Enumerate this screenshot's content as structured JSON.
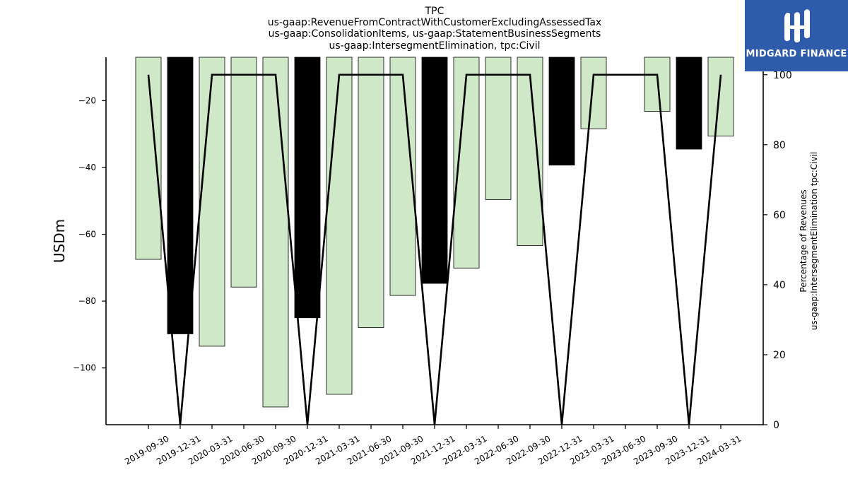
{
  "header": {
    "title_lines": [
      "TPC",
      "us-gaap:RevenueFromContractWithCustomerExcludingAssessedTax",
      "us-gaap:ConsolidationItems, us-gaap:StatementBusinessSegments",
      "us-gaap:IntersegmentElimination, tpc:Civil"
    ]
  },
  "logo": {
    "text": "MIDGARD FINANCE",
    "bg_color": "#2f5bab"
  },
  "chart_data": {
    "type": "bar",
    "categories": [
      "2019-09-30",
      "2019-12-31",
      "2020-03-31",
      "2020-06-30",
      "2020-09-30",
      "2020-12-31",
      "2021-03-31",
      "2021-06-30",
      "2021-09-30",
      "2021-12-31",
      "2022-03-31",
      "2022-06-30",
      "2022-09-30",
      "2022-12-31",
      "2023-03-31",
      "2023-06-30",
      "2023-09-30",
      "2023-12-31",
      "2024-03-31"
    ],
    "series": [
      {
        "kind": "bar",
        "axis": "left",
        "values": [
          -67.5,
          -89.8,
          -93.5,
          -75.8,
          -111.7,
          -85.0,
          -107.9,
          -87.9,
          -78.3,
          -74.7,
          -70.1,
          -49.6,
          -63.4,
          -39.3,
          -28.4,
          null,
          -23.2,
          -34.5,
          -30.6
        ],
        "colors": [
          "#cfe9c8",
          "#000000",
          "#cfe9c8",
          "#cfe9c8",
          "#cfe9c8",
          "#000000",
          "#cfe9c8",
          "#cfe9c8",
          "#cfe9c8",
          "#000000",
          "#cfe9c8",
          "#cfe9c8",
          "#cfe9c8",
          "#000000",
          "#cfe9c8",
          "#cfe9c8",
          "#cfe9c8",
          "#000000",
          "#cfe9c8"
        ]
      },
      {
        "kind": "line",
        "axis": "right",
        "values": [
          100,
          0,
          100,
          100,
          100,
          0,
          100,
          100,
          100,
          0,
          100,
          100,
          100,
          0,
          100,
          100,
          100,
          0,
          100
        ],
        "color": "#000000"
      }
    ],
    "ylabel": "USDm",
    "y2label_lines": [
      "Percentage of Revenues",
      "us-gaap:IntersegmentElimination tpc:Civil"
    ],
    "ylim": [
      -117,
      -7
    ],
    "y2lim": [
      0,
      105
    ],
    "yticks": [
      -20,
      -40,
      -60,
      -80,
      -100
    ],
    "ytick_labels": [
      "−20",
      "−40",
      "−60",
      "−80",
      "−100"
    ],
    "y2ticks": [
      0,
      20,
      40,
      60,
      80,
      100
    ],
    "y2tick_labels": [
      "0",
      "20",
      "40",
      "60",
      "80",
      "100"
    ],
    "grid": false,
    "colors": {
      "bar_positive": "#cfe9c8",
      "bar_negative_quarter": "#000000",
      "line": "#000000"
    }
  }
}
